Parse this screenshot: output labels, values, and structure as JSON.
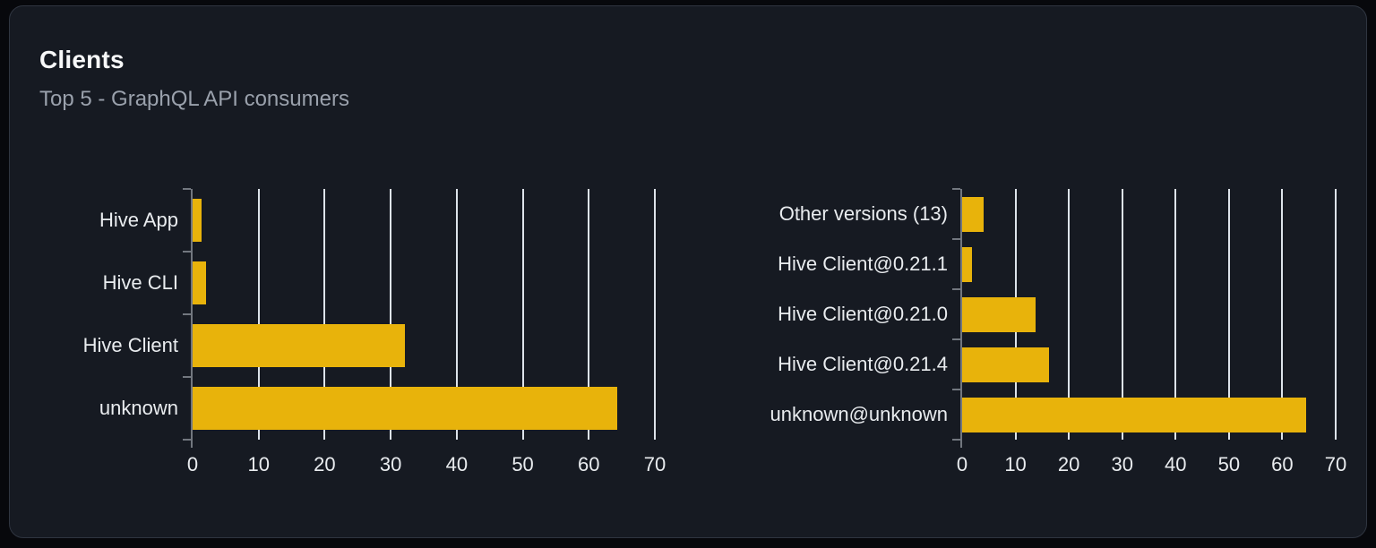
{
  "card": {
    "title": "Clients",
    "subtitle": "Top 5 - GraphQL API consumers"
  },
  "colors": {
    "page_background": "#07080c",
    "card_background": "#161a22",
    "card_border": "#2f3540",
    "bar": "#e8b30b",
    "gridline": "#dde3ea",
    "axis": "#72777f",
    "label_text": "#e9ecef",
    "title_text": "#f7f8f9",
    "subtitle_text": "#9aa1ac"
  },
  "chart_data": [
    {
      "type": "bar",
      "orientation": "horizontal",
      "title": "Clients by name",
      "categories": [
        "Hive App",
        "Hive CLI",
        "Hive Client",
        "unknown"
      ],
      "values": [
        1.4,
        2.1,
        32.1,
        64.3
      ],
      "xlabel": "",
      "ylabel": "",
      "xlim": [
        0,
        70
      ],
      "xticks": [
        0,
        10,
        20,
        30,
        40,
        50,
        60,
        70
      ],
      "grid": true,
      "legend": "none"
    },
    {
      "type": "bar",
      "orientation": "horizontal",
      "title": "Clients by version",
      "categories": [
        "Other versions (13)",
        "Hive Client@0.21.1",
        "Hive Client@0.21.0",
        "Hive Client@0.21.4",
        "unknown@unknown"
      ],
      "values": [
        4.0,
        1.9,
        13.8,
        16.3,
        64.4
      ],
      "xlabel": "",
      "ylabel": "",
      "xlim": [
        0,
        70
      ],
      "xticks": [
        0,
        10,
        20,
        30,
        40,
        50,
        60,
        70
      ],
      "grid": true,
      "legend": "none"
    }
  ]
}
